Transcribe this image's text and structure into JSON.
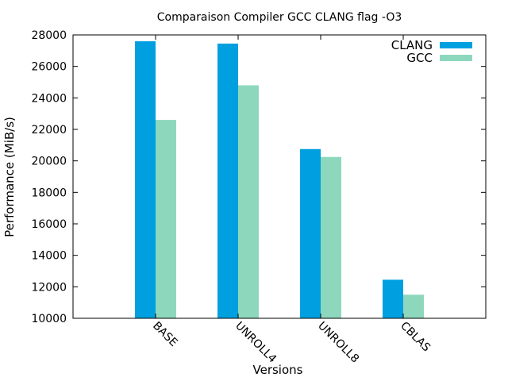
{
  "chart_data": {
    "type": "bar",
    "title": "Comparaison Compiler GCC  CLANG flag -O3",
    "xlabel": "Versions",
    "ylabel": "Performance (MiB/s)",
    "ylim": [
      10000,
      28000
    ],
    "yticks": [
      10000,
      12000,
      14000,
      16000,
      18000,
      20000,
      22000,
      24000,
      26000,
      28000
    ],
    "categories": [
      "BASE",
      "UNROLL4",
      "UNROLL8",
      "CBLAS"
    ],
    "series": [
      {
        "name": "CLANG",
        "color": "#00a0e0",
        "values": [
          27600,
          27450,
          20750,
          12450
        ]
      },
      {
        "name": "GCC",
        "color": "#8dd8bd",
        "values": [
          22600,
          24800,
          20250,
          11500
        ]
      }
    ],
    "legend_position": "top-right",
    "grid": false
  }
}
